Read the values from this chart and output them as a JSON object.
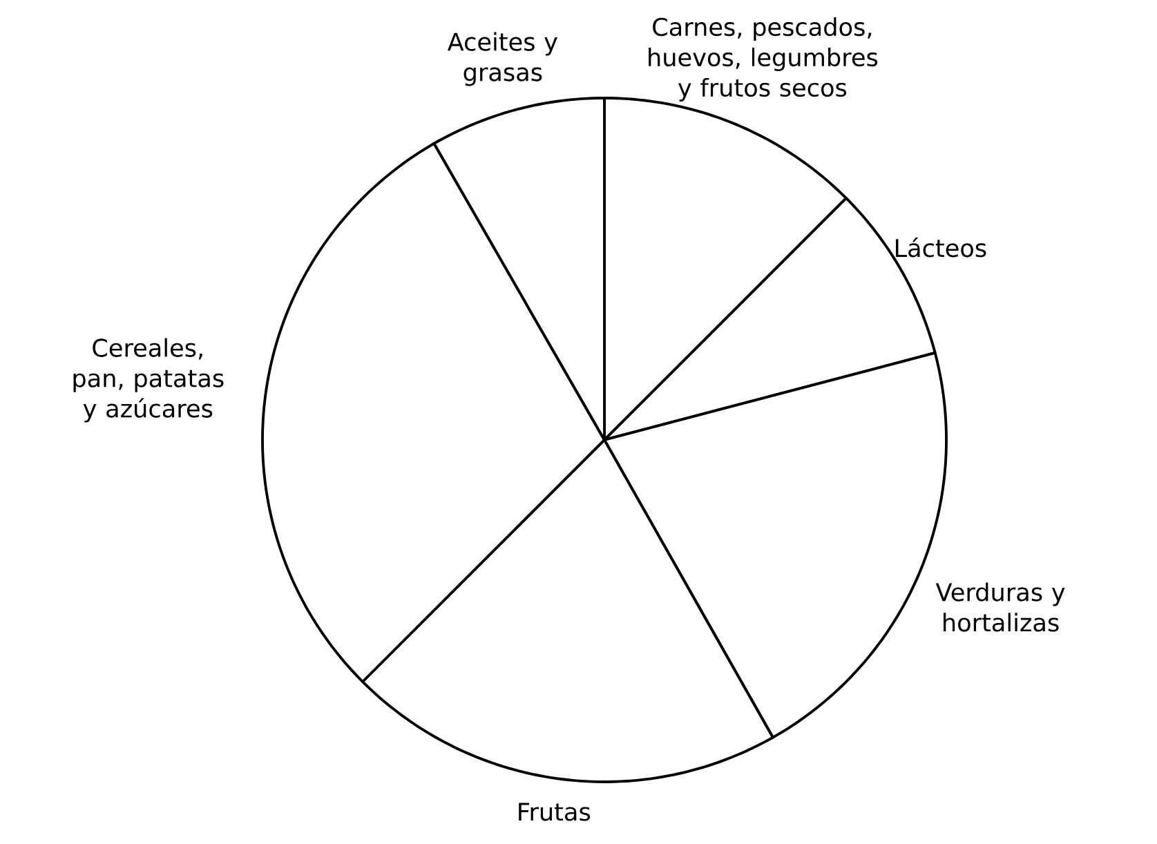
{
  "chart_data": {
    "type": "pie",
    "categories": [
      "Carnes, pescados, huevos, legumbres y frutos secos",
      "Lácteos",
      "Verduras y hortalizas",
      "Frutas",
      "Cereales, pan, patatas y azúcares",
      "Aceites y grasas"
    ],
    "values": [
      12.5,
      8.4,
      20.9,
      20.7,
      29.2,
      8.3
    ],
    "colors": [
      "#ffffff",
      "#ffffff",
      "#ffffff",
      "#ffffff",
      "#ffffff",
      "#ffffff"
    ]
  }
}
